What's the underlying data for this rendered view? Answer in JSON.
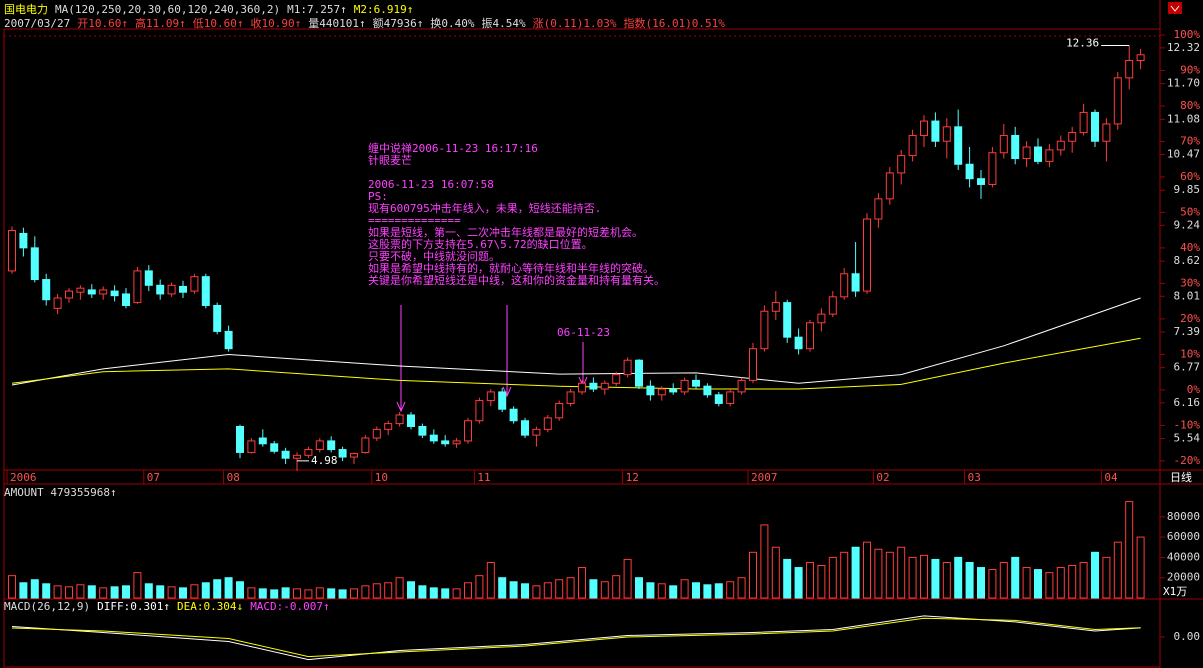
{
  "header": {
    "stock_name": "国电电力",
    "indicator": "MA(120,250,20,30,60,120,240,360,2)",
    "m1": "M1:7.257↑",
    "m2": "M2:6.919↑",
    "quote": [
      {
        "text": "2007/03/27",
        "color": "#dddddd"
      },
      {
        "text": "开10.60↑",
        "color": "#ff4040"
      },
      {
        "text": "高11.09↑",
        "color": "#ff4040"
      },
      {
        "text": "低10.60↑",
        "color": "#ff4040"
      },
      {
        "text": "收10.90↑",
        "color": "#ff4040"
      },
      {
        "text": "量440101↑",
        "color": "#dddddd"
      },
      {
        "text": "额47936↑",
        "color": "#dddddd"
      },
      {
        "text": "换0.40%",
        "color": "#dddddd"
      },
      {
        "text": "振4.54%",
        "color": "#dddddd"
      },
      {
        "text": "涨(0.11)1.03%",
        "color": "#ff4040"
      },
      {
        "text": "指数(16.01)0.51%",
        "color": "#ff4040"
      }
    ]
  },
  "annotation": {
    "title_lines": [
      "缠中说禅2006-11-23 16:17:16",
      "针眼麦芒"
    ],
    "body_lines": [
      "2006-11-23 16:07:58",
      "PS:",
      "现有600795冲击年线入，未果，短线还能持否.",
      "==============",
      "如果是短线，第一、二次冲击年线都是最好的短差机会。",
      "这股票的下方支持在5.67\\5.72的缺口位置。",
      "只要不破，中线就没问题。",
      "如果是希望中线持有的，就耐心等待年线和半年线的突破。",
      "关键是你希望短线还是中线，这和你的资金量和持有量有关。"
    ],
    "arrow_label": "06-11-23"
  },
  "period_button": "日线",
  "chart_data": [
    {
      "type": "candlestick",
      "open": [
        8.45,
        9.1,
        8.85,
        8.3,
        7.8,
        7.98,
        8.08,
        8.12,
        8.05,
        8.1,
        8.05,
        7.9,
        8.45,
        8.2,
        8.05,
        8.18,
        8.1,
        8.35,
        7.85,
        7.4,
        5.75,
        5.3,
        5.55,
        5.45,
        5.32,
        5.2,
        5.25,
        5.35,
        5.5,
        5.35,
        5.22,
        5.3,
        5.55,
        5.7,
        5.8,
        5.95,
        5.75,
        5.6,
        5.5,
        5.45,
        5.5,
        5.85,
        6.2,
        6.35,
        6.05,
        5.85,
        5.6,
        5.7,
        5.9,
        6.15,
        6.35,
        6.5,
        6.4,
        6.5,
        6.65,
        6.9,
        6.45,
        6.3,
        6.4,
        6.35,
        6.55,
        6.45,
        6.3,
        6.15,
        6.35,
        6.55,
        7.1,
        7.75,
        7.9,
        7.3,
        7.1,
        7.55,
        7.7,
        8.0,
        8.4,
        8.1,
        9.35,
        9.7,
        10.15,
        10.45,
        10.8,
        11.05,
        10.7,
        10.95,
        10.3,
        10.05,
        9.95,
        10.5,
        10.8,
        10.4,
        10.6,
        10.35,
        10.55,
        10.7,
        10.85,
        11.2,
        10.7,
        11.0,
        11.8,
        12.1
      ],
      "high": [
        9.22,
        9.2,
        9.05,
        8.4,
        8.05,
        8.15,
        8.2,
        8.22,
        8.18,
        8.2,
        8.15,
        8.52,
        8.55,
        8.3,
        8.25,
        8.28,
        8.4,
        8.4,
        7.9,
        7.5,
        5.78,
        5.55,
        5.7,
        5.5,
        5.38,
        5.3,
        5.4,
        5.55,
        5.58,
        5.4,
        5.3,
        5.6,
        5.75,
        5.85,
        6.0,
        6.0,
        5.8,
        5.7,
        5.6,
        5.55,
        5.9,
        6.25,
        6.4,
        6.42,
        6.1,
        5.9,
        5.75,
        5.95,
        6.2,
        6.4,
        6.55,
        6.6,
        6.55,
        6.7,
        6.95,
        6.92,
        6.55,
        6.45,
        6.5,
        6.6,
        6.65,
        6.5,
        6.35,
        6.4,
        6.6,
        7.2,
        7.85,
        8.1,
        7.95,
        7.45,
        7.6,
        7.8,
        8.1,
        8.5,
        8.95,
        9.45,
        9.8,
        10.25,
        10.55,
        10.9,
        11.15,
        11.2,
        11.1,
        11.25,
        10.6,
        10.2,
        10.6,
        11.0,
        10.95,
        10.7,
        10.75,
        10.65,
        10.8,
        10.95,
        11.35,
        11.25,
        11.1,
        11.9,
        12.36,
        12.3
      ],
      "low": [
        8.4,
        8.7,
        8.25,
        7.85,
        7.7,
        7.9,
        7.95,
        7.98,
        7.95,
        7.92,
        7.8,
        7.88,
        8.1,
        7.95,
        8.0,
        7.98,
        8.05,
        7.8,
        7.35,
        7.05,
        5.2,
        5.28,
        5.4,
        5.28,
        5.1,
        4.98,
        5.2,
        5.3,
        5.3,
        5.15,
        5.1,
        5.28,
        5.5,
        5.6,
        5.75,
        5.7,
        5.55,
        5.45,
        5.4,
        5.38,
        5.45,
        5.8,
        6.1,
        6.0,
        5.8,
        5.55,
        5.4,
        5.65,
        5.85,
        6.1,
        6.3,
        6.35,
        6.3,
        6.45,
        6.6,
        6.4,
        6.2,
        6.2,
        6.3,
        6.3,
        6.4,
        6.25,
        6.1,
        6.1,
        6.3,
        6.5,
        7.05,
        7.6,
        7.2,
        7.0,
        7.05,
        7.4,
        7.65,
        7.95,
        8.0,
        8.05,
        9.2,
        9.6,
        9.95,
        10.35,
        10.6,
        10.6,
        10.4,
        10.2,
        9.9,
        9.7,
        9.9,
        10.4,
        10.3,
        10.25,
        10.3,
        10.25,
        10.45,
        10.5,
        10.8,
        10.6,
        10.35,
        10.9,
        11.6,
        11.95
      ],
      "close": [
        9.15,
        8.85,
        8.3,
        7.95,
        7.98,
        8.1,
        8.15,
        8.05,
        8.12,
        8.02,
        7.85,
        8.45,
        8.2,
        8.05,
        8.2,
        8.08,
        8.35,
        7.85,
        7.4,
        7.1,
        5.3,
        5.5,
        5.45,
        5.32,
        5.2,
        5.25,
        5.35,
        5.5,
        5.35,
        5.22,
        5.28,
        5.55,
        5.7,
        5.8,
        5.95,
        5.75,
        5.6,
        5.5,
        5.45,
        5.5,
        5.85,
        6.2,
        6.35,
        6.05,
        5.85,
        5.6,
        5.7,
        5.9,
        6.15,
        6.35,
        6.5,
        6.4,
        6.5,
        6.65,
        6.9,
        6.45,
        6.3,
        6.4,
        6.35,
        6.55,
        6.45,
        6.3,
        6.15,
        6.35,
        6.55,
        7.1,
        7.75,
        7.9,
        7.3,
        7.1,
        7.55,
        7.7,
        8.0,
        8.4,
        8.1,
        9.35,
        9.7,
        10.15,
        10.45,
        10.8,
        11.05,
        10.7,
        10.95,
        10.3,
        10.05,
        9.95,
        10.5,
        10.8,
        10.4,
        10.6,
        10.35,
        10.55,
        10.7,
        10.85,
        11.2,
        10.7,
        11.0,
        11.8,
        12.1,
        12.2
      ],
      "up_color": "#ff3c3c",
      "down_color": "#54ffff",
      "ylim": [
        4.95,
        12.63
      ],
      "yticks": [
        5.54,
        6.16,
        6.77,
        7.39,
        8.01,
        8.62,
        9.24,
        9.85,
        10.47,
        11.08,
        {
          "value": 11.7,
          "label": "11.70"
        },
        12.32
      ],
      "y2lim": [
        -23.3,
        101.4
      ],
      "y2ticks": [
        {
          "value": -20,
          "label": "-20%"
        },
        {
          "value": -10,
          "label": "-10%"
        },
        {
          "value": 0,
          "label": "0%"
        },
        {
          "value": 10,
          "label": "10%"
        },
        {
          "value": 20,
          "label": "20%"
        },
        {
          "value": 30,
          "label": "30%"
        },
        {
          "value": 40,
          "label": "40%"
        },
        {
          "value": 50,
          "label": "50%"
        },
        {
          "value": 60,
          "label": "60%"
        },
        {
          "value": 70,
          "label": "70%"
        },
        {
          "value": 80,
          "label": "80%"
        },
        {
          "value": 90,
          "label": "90%"
        },
        {
          "value": 100,
          "label": "100%"
        }
      ],
      "xticks": [
        {
          "value": 0,
          "label": "2006"
        },
        {
          "value": 12,
          "label": "07"
        },
        {
          "value": 19,
          "label": "08"
        },
        {
          "value": 32,
          "label": "10"
        },
        {
          "value": 41,
          "label": "11"
        },
        {
          "value": 54,
          "label": "12"
        },
        {
          "value": 65,
          "label": "2007"
        },
        {
          "value": 76,
          "label": "02"
        },
        {
          "value": 84,
          "label": "03"
        },
        {
          "value": 96,
          "label": "04"
        }
      ],
      "series": [
        {
          "color": "#ffffff",
          "x": [
            0,
            8,
            19,
            34,
            48,
            60,
            69,
            78,
            87,
            99
          ],
          "values": [
            6.47,
            6.75,
            7.0,
            6.8,
            6.66,
            6.68,
            6.5,
            6.65,
            7.15,
            7.98
          ]
        },
        {
          "color": "#ffff00",
          "x": [
            0,
            8,
            19,
            34,
            48,
            60,
            69,
            78,
            87,
            99
          ],
          "values": [
            6.5,
            6.7,
            6.75,
            6.55,
            6.45,
            6.4,
            6.4,
            6.48,
            6.85,
            7.28
          ]
        }
      ]
    },
    {
      "type": "bar",
      "title": "AMOUNT 479355968↑",
      "values": [
        22000,
        15000,
        18000,
        14000,
        12000,
        11000,
        13000,
        12000,
        10000,
        11000,
        12000,
        25000,
        14000,
        12000,
        11000,
        10000,
        13000,
        15000,
        18000,
        20000,
        16000,
        10000,
        9000,
        8000,
        10000,
        9000,
        8000,
        10000,
        9000,
        8000,
        9000,
        12000,
        14000,
        15000,
        20000,
        16000,
        12000,
        10000,
        9000,
        9000,
        15000,
        22000,
        35000,
        20000,
        16000,
        14000,
        12000,
        15000,
        18000,
        20000,
        30000,
        18000,
        16000,
        22000,
        38000,
        20000,
        15000,
        14000,
        12000,
        18000,
        15000,
        13000,
        14000,
        16000,
        20000,
        45000,
        72000,
        50000,
        38000,
        30000,
        35000,
        32000,
        40000,
        45000,
        50000,
        55000,
        48000,
        45000,
        50000,
        40000,
        42000,
        38000,
        35000,
        40000,
        35000,
        30000,
        28000,
        35000,
        40000,
        30000,
        28000,
        25000,
        30000,
        32000,
        35000,
        45000,
        40000,
        55000,
        95000,
        60000
      ],
      "ylim": [
        0,
        98500
      ],
      "yticks": [
        20000,
        40000,
        60000,
        80000
      ],
      "unit_label": "X1万"
    },
    {
      "type": "line",
      "title_parts": [
        {
          "text": "MACD(26,12,9)",
          "color": "#dddddd"
        },
        {
          "text": "DIFF:0.301↑",
          "color": "#ffffff"
        },
        {
          "text": "DEA:0.304↓",
          "color": "#ffff00"
        },
        {
          "text": "MACD:-0.007↑",
          "color": "#ff40ff"
        }
      ],
      "series": [
        {
          "color": "#ffffff",
          "x": [
            0,
            8,
            19,
            26,
            34,
            45,
            54,
            65,
            72,
            80,
            88,
            95,
            99
          ],
          "values": [
            0.35,
            0.15,
            -0.15,
            -0.75,
            -0.45,
            -0.25,
            0.05,
            0.15,
            0.25,
            0.7,
            0.5,
            0.2,
            0.301
          ]
        },
        {
          "color": "#ffff00",
          "x": [
            0,
            8,
            19,
            26,
            34,
            45,
            54,
            65,
            72,
            80,
            88,
            95,
            99
          ],
          "values": [
            0.3,
            0.2,
            -0.05,
            -0.65,
            -0.5,
            -0.3,
            0.0,
            0.1,
            0.2,
            0.62,
            0.55,
            0.25,
            0.304
          ]
        }
      ],
      "ylim": [
        -1.03,
        0.83
      ],
      "yticks": [
        {
          "value": 0,
          "label": "0.00"
        }
      ]
    }
  ]
}
